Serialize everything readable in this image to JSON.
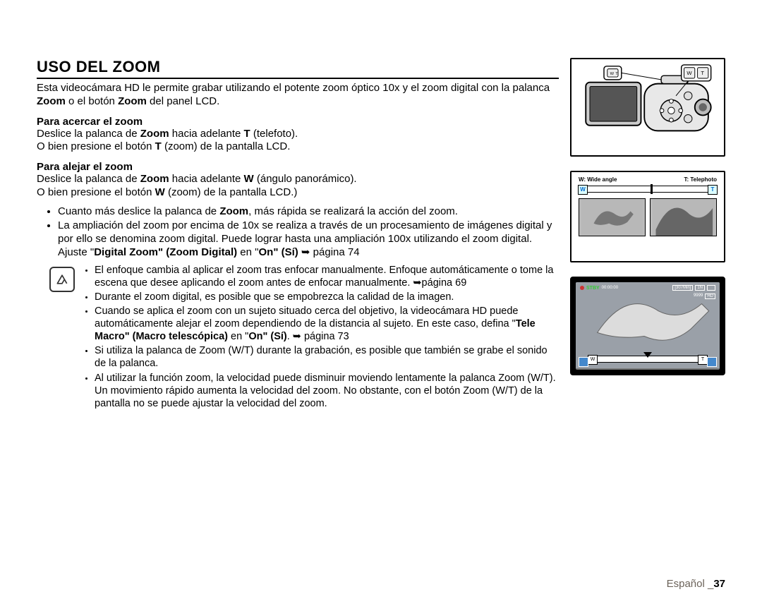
{
  "title": "USO DEL ZOOM",
  "intro_parts": {
    "a": "Esta videocámara HD le permite grabar utilizando el potente zoom óptico 10x y el zoom digital con la palanca ",
    "b": "Zoom",
    "c": " o el botón ",
    "d": "Zoom",
    "e": " del panel LCD."
  },
  "zoomIn": {
    "heading": "Para acercar el zoom",
    "l1a": "Deslice la palanca de ",
    "l1b": "Zoom",
    "l1c": " hacia adelante ",
    "l1d": "T",
    "l1e": " (telefoto).",
    "l2a": "O bien presione el botón ",
    "l2b": "T",
    "l2c": " (zoom) de la pantalla LCD."
  },
  "zoomOut": {
    "heading": "Para alejar el zoom",
    "l1a": "Deslice la palanca de ",
    "l1b": "Zoom",
    "l1c": " hacia adelante ",
    "l1d": "W",
    "l1e": " (ángulo panorámico).",
    "l2a": "O bien presione el botón ",
    "l2b": "W",
    "l2c": " (zoom) de la pantalla LCD.)"
  },
  "bullets": {
    "b1a": "Cuanto más deslice la palanca de ",
    "b1b": "Zoom",
    "b1c": ", más rápida se realizará la acción del zoom.",
    "b2a": "La ampliación del zoom por encima de 10x se realiza a través de un procesamiento de imágenes digital y por ello se denomina zoom digital. Puede lograr hasta una ampliación 100x utilizando el zoom digital. Ajuste \"",
    "b2b": "Digital Zoom\" (Zoom Digital)",
    "b2c": " en \"",
    "b2d": "On\" (Sí)",
    "b2e": " ➥ página 74"
  },
  "notes": {
    "n1": "El enfoque cambia al aplicar el zoom tras enfocar manualmente. Enfoque automáticamente o tome la escena que desee aplicando el zoom antes de enfocar manualmente. ➥página 69",
    "n2": "Durante el zoom digital, es posible que se empobrezca la calidad de la imagen.",
    "n3a": "Cuando se aplica el zoom con un sujeto situado cerca del objetivo, la videocámara HD puede automáticamente alejar el zoom dependiendo de la distancia al sujeto. En este caso, defina \"",
    "n3b": "Tele Macro\" (Macro telescópica)",
    "n3c": " en \"",
    "n3d": "On\" (Sí)",
    "n3e": ". ➥ página 73",
    "n4": "Si utiliza la palanca de Zoom (W/T) durante la grabación, es posible que también se grabe el sonido de la palanca.",
    "n5": "Al utilizar la función zoom, la velocidad puede disminuir moviendo lentamente la palanca Zoom (W/T). Un movimiento rápido aumenta la velocidad del zoom. No obstante, con el botón Zoom (W/T) de la pantalla no se puede ajustar la velocidad del zoom."
  },
  "slider": {
    "left_label": "W: Wide angle",
    "right_label": "T: Telephoto",
    "w": "W",
    "t": "T",
    "knob_pos_percent": 52
  },
  "screen": {
    "stby": "STBY",
    "time": "00:00:00",
    "remain": "[307Min]",
    "card": "1N",
    "count": "9999",
    "hd": "HD"
  },
  "footer": {
    "lang": "Español _",
    "page": "37"
  },
  "colors": {
    "text": "#000000",
    "footer_muted": "#6b6259",
    "accent_blue": "#0066cc",
    "stby_green": "#33cc33"
  }
}
